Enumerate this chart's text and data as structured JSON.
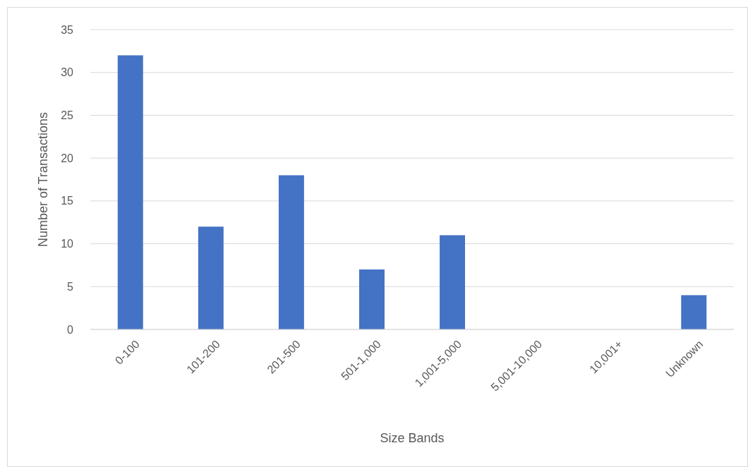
{
  "chart_data": {
    "type": "bar",
    "xlabel": "Size Bands",
    "ylabel": "Number of Transactions",
    "categories": [
      "0-100",
      "101-200",
      "201-500",
      "501-1,000",
      "1,001-5,000",
      "5,001-10,000",
      "10,001+",
      "Unknown"
    ],
    "values": [
      32,
      12,
      18,
      7,
      11,
      0,
      0,
      4
    ],
    "color": "#4472c4",
    "ylim": [
      0,
      35
    ],
    "yticks": [
      0,
      5,
      10,
      15,
      20,
      25,
      30,
      35
    ],
    "grid": "y"
  }
}
